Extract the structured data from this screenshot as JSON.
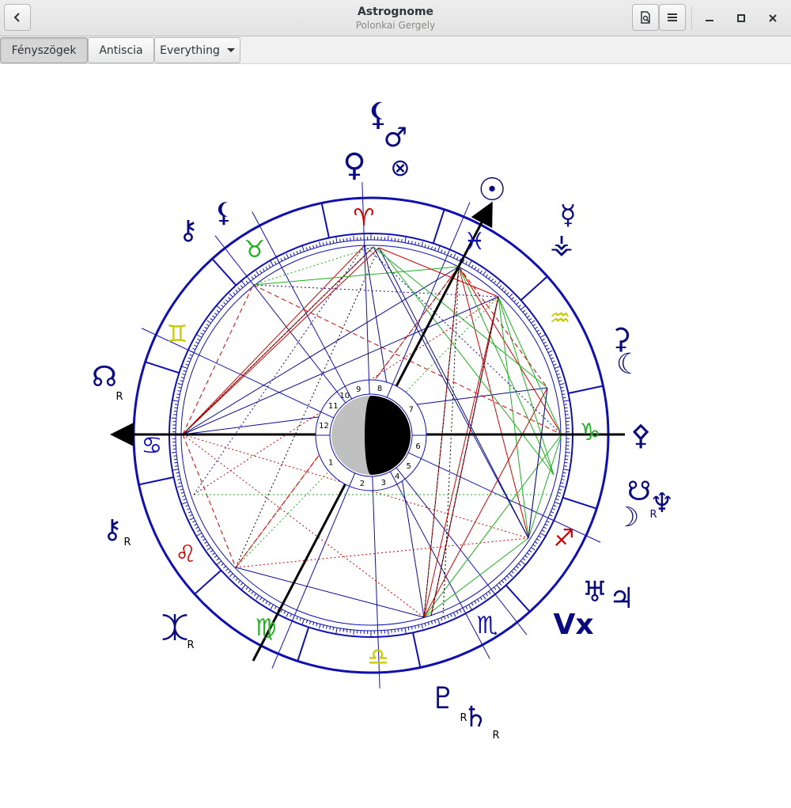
{
  "window": {
    "title": "Astrognome",
    "subtitle": "Polonkai Gergely"
  },
  "toolbar": {
    "tab_aspects": "Fényszögek",
    "tab_antiscia": "Antiscia",
    "filter_selected": "Everything"
  },
  "icons": {
    "back": "go-back-icon",
    "chart_view": "document-preview-icon",
    "menu": "menu-icon",
    "minimize": "minimize-icon",
    "maximize": "maximize-icon",
    "close": "close-icon"
  },
  "chart": {
    "houses": [
      "1",
      "2",
      "3",
      "4",
      "5",
      "6",
      "7",
      "8",
      "9",
      "10",
      "11",
      "12"
    ],
    "retrograde_mark": "R",
    "vertex_label": "Vx",
    "colors": {
      "ring": "#1010b0",
      "fire": "#d00000",
      "earth": "#c8c800",
      "air": "#c8c800",
      "water": "#20b020",
      "planet": "#0a0a80"
    }
  }
}
